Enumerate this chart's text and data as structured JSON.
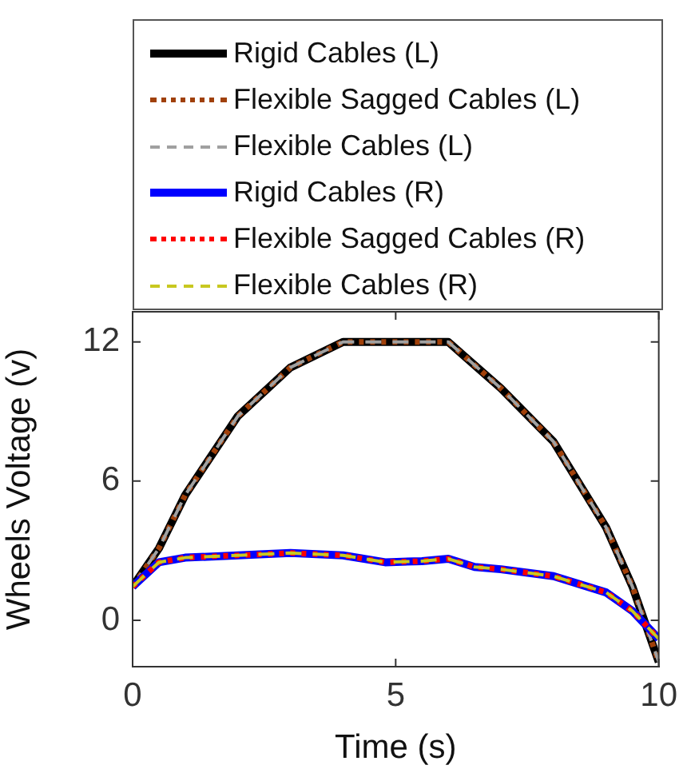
{
  "chart_data": {
    "type": "line",
    "xlabel": "Time (s)",
    "ylabel": "Wheels Voltage (v)",
    "xlim": [
      0,
      10
    ],
    "ylim": [
      -2,
      13.3
    ],
    "xticks": [
      0,
      5,
      10
    ],
    "yticks": [
      0,
      6,
      12
    ],
    "grid": false,
    "legend": "top",
    "marker": "none",
    "series": [
      {
        "name": "Rigid Cables (L)",
        "color": "#000000",
        "line_style": "solid",
        "x": [
          0,
          0.5,
          1,
          2,
          3,
          4,
          6,
          6.3,
          7,
          8,
          9,
          9.5,
          10
        ],
        "values": [
          1.45,
          3.1,
          5.4,
          8.8,
          10.9,
          12,
          12,
          11.4,
          10,
          7.7,
          4,
          1.45,
          -1.8
        ]
      },
      {
        "name": "Flexible Sagged Cables (L)",
        "color": "#a0400a",
        "line_style": "dotted",
        "x": [
          0,
          0.5,
          1,
          2,
          3,
          4,
          6,
          6.3,
          7,
          8,
          9,
          9.5,
          10
        ],
        "values": [
          1.45,
          3.1,
          5.4,
          8.8,
          10.9,
          12,
          12,
          11.4,
          10,
          7.7,
          4,
          1.45,
          -1.8
        ]
      },
      {
        "name": "Flexible Cables (L)",
        "color": "#a0a0a0",
        "line_style": "dashed",
        "x": [
          0,
          0.5,
          1,
          2,
          3,
          4,
          6,
          6.3,
          7,
          8,
          9,
          9.5,
          10
        ],
        "values": [
          1.45,
          3.1,
          5.4,
          8.8,
          10.9,
          12,
          12,
          11.4,
          10,
          7.7,
          4,
          1.45,
          -1.8
        ]
      },
      {
        "name": "Rigid Cables (R)",
        "color": "#0000ff",
        "line_style": "solid",
        "x": [
          0,
          0.5,
          1,
          2,
          3,
          4,
          4.8,
          5.5,
          6,
          6.5,
          7,
          8,
          9,
          9.5,
          10
        ],
        "values": [
          1.45,
          2.5,
          2.7,
          2.8,
          2.9,
          2.8,
          2.5,
          2.55,
          2.65,
          2.3,
          2.2,
          1.9,
          1.2,
          0.4,
          -0.8
        ]
      },
      {
        "name": "Flexible Sagged Cables (R)",
        "color": "#ff0000",
        "line_style": "dotted",
        "x": [
          0,
          0.5,
          1,
          2,
          3,
          4,
          4.8,
          5.5,
          6,
          6.5,
          7,
          8,
          9,
          9.5,
          10
        ],
        "values": [
          1.45,
          2.5,
          2.7,
          2.8,
          2.9,
          2.8,
          2.5,
          2.55,
          2.65,
          2.3,
          2.2,
          1.9,
          1.2,
          0.4,
          -0.8
        ]
      },
      {
        "name": "Flexible Cables (R)",
        "color": "#c8c820",
        "line_style": "dashed",
        "x": [
          0,
          0.5,
          1,
          2,
          3,
          4,
          4.8,
          5.5,
          6,
          6.5,
          7,
          8,
          9,
          9.5,
          10
        ],
        "values": [
          1.45,
          2.5,
          2.7,
          2.8,
          2.9,
          2.8,
          2.5,
          2.55,
          2.65,
          2.3,
          2.2,
          1.9,
          1.2,
          0.4,
          -0.8
        ]
      }
    ]
  }
}
